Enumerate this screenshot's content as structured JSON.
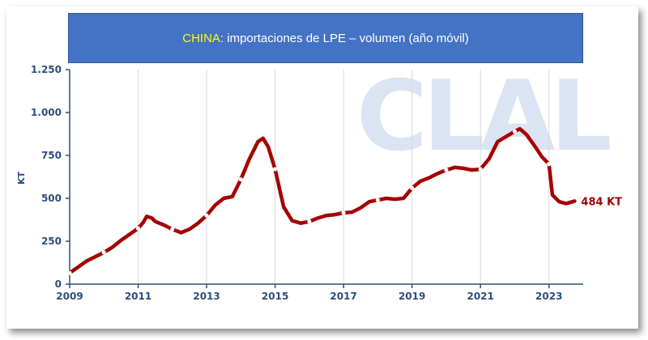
{
  "title": {
    "highlight": "CHINA",
    "rest": ": importaciones de LPE – volumen (año móvil)"
  },
  "watermark": "CLAL",
  "colors": {
    "title_bg": "#4472c4",
    "title_highlight": "#ffff00",
    "line": "#a50000",
    "axis": "#2e4e7e",
    "grid": "#d9d9d9"
  },
  "chart_data": {
    "type": "line",
    "title": "CHINA: importaciones de LPE – volumen (año móvil)",
    "xlabel": "",
    "ylabel": "KT",
    "xlim": [
      2009,
      2024
    ],
    "ylim": [
      0,
      1250
    ],
    "xticks": [
      2009,
      2011,
      2013,
      2015,
      2017,
      2019,
      2021,
      2023
    ],
    "xtick_labels": [
      "2009",
      "2011",
      "2013",
      "2015",
      "2017",
      "2019",
      "2021",
      "2023"
    ],
    "yticks": [
      0,
      250,
      500,
      750,
      1000,
      1250
    ],
    "ytick_labels": [
      "0",
      "250",
      "500",
      "750",
      "1.000",
      "1.250"
    ],
    "grid": "vertical",
    "end_label": "484 KT",
    "series": [
      {
        "values": [
          [
            2009.0,
            65
          ],
          [
            2009.25,
            100
          ],
          [
            2009.5,
            135
          ],
          [
            2009.75,
            160
          ],
          [
            2010.0,
            185
          ],
          [
            2010.25,
            215
          ],
          [
            2010.5,
            255
          ],
          [
            2010.75,
            290
          ],
          [
            2011.0,
            325
          ],
          [
            2011.15,
            360
          ],
          [
            2011.25,
            395
          ],
          [
            2011.4,
            385
          ],
          [
            2011.5,
            365
          ],
          [
            2011.75,
            345
          ],
          [
            2012.0,
            320
          ],
          [
            2012.25,
            300
          ],
          [
            2012.5,
            320
          ],
          [
            2012.75,
            355
          ],
          [
            2013.0,
            400
          ],
          [
            2013.25,
            460
          ],
          [
            2013.5,
            500
          ],
          [
            2013.75,
            510
          ],
          [
            2014.0,
            610
          ],
          [
            2014.25,
            730
          ],
          [
            2014.5,
            830
          ],
          [
            2014.65,
            850
          ],
          [
            2014.8,
            800
          ],
          [
            2015.0,
            670
          ],
          [
            2015.25,
            450
          ],
          [
            2015.5,
            370
          ],
          [
            2015.75,
            355
          ],
          [
            2016.0,
            365
          ],
          [
            2016.25,
            385
          ],
          [
            2016.5,
            400
          ],
          [
            2016.75,
            405
          ],
          [
            2017.0,
            415
          ],
          [
            2017.25,
            420
          ],
          [
            2017.5,
            445
          ],
          [
            2017.75,
            480
          ],
          [
            2018.0,
            490
          ],
          [
            2018.25,
            500
          ],
          [
            2018.5,
            495
          ],
          [
            2018.75,
            500
          ],
          [
            2019.0,
            560
          ],
          [
            2019.25,
            600
          ],
          [
            2019.5,
            620
          ],
          [
            2019.75,
            645
          ],
          [
            2020.0,
            665
          ],
          [
            2020.25,
            680
          ],
          [
            2020.5,
            675
          ],
          [
            2020.75,
            665
          ],
          [
            2021.0,
            670
          ],
          [
            2021.25,
            730
          ],
          [
            2021.5,
            830
          ],
          [
            2021.75,
            860
          ],
          [
            2022.0,
            890
          ],
          [
            2022.15,
            905
          ],
          [
            2022.35,
            870
          ],
          [
            2022.6,
            800
          ],
          [
            2022.8,
            740
          ],
          [
            2023.0,
            700
          ],
          [
            2023.1,
            520
          ],
          [
            2023.3,
            480
          ],
          [
            2023.5,
            470
          ],
          [
            2023.75,
            484
          ]
        ]
      }
    ],
    "markers_x": [
      2009.0,
      2010.0,
      2011.0,
      2012.0,
      2013.0,
      2014.0,
      2015.0,
      2016.0,
      2017.0,
      2018.0,
      2019.0,
      2020.0,
      2021.0,
      2022.0,
      2023.0
    ]
  }
}
